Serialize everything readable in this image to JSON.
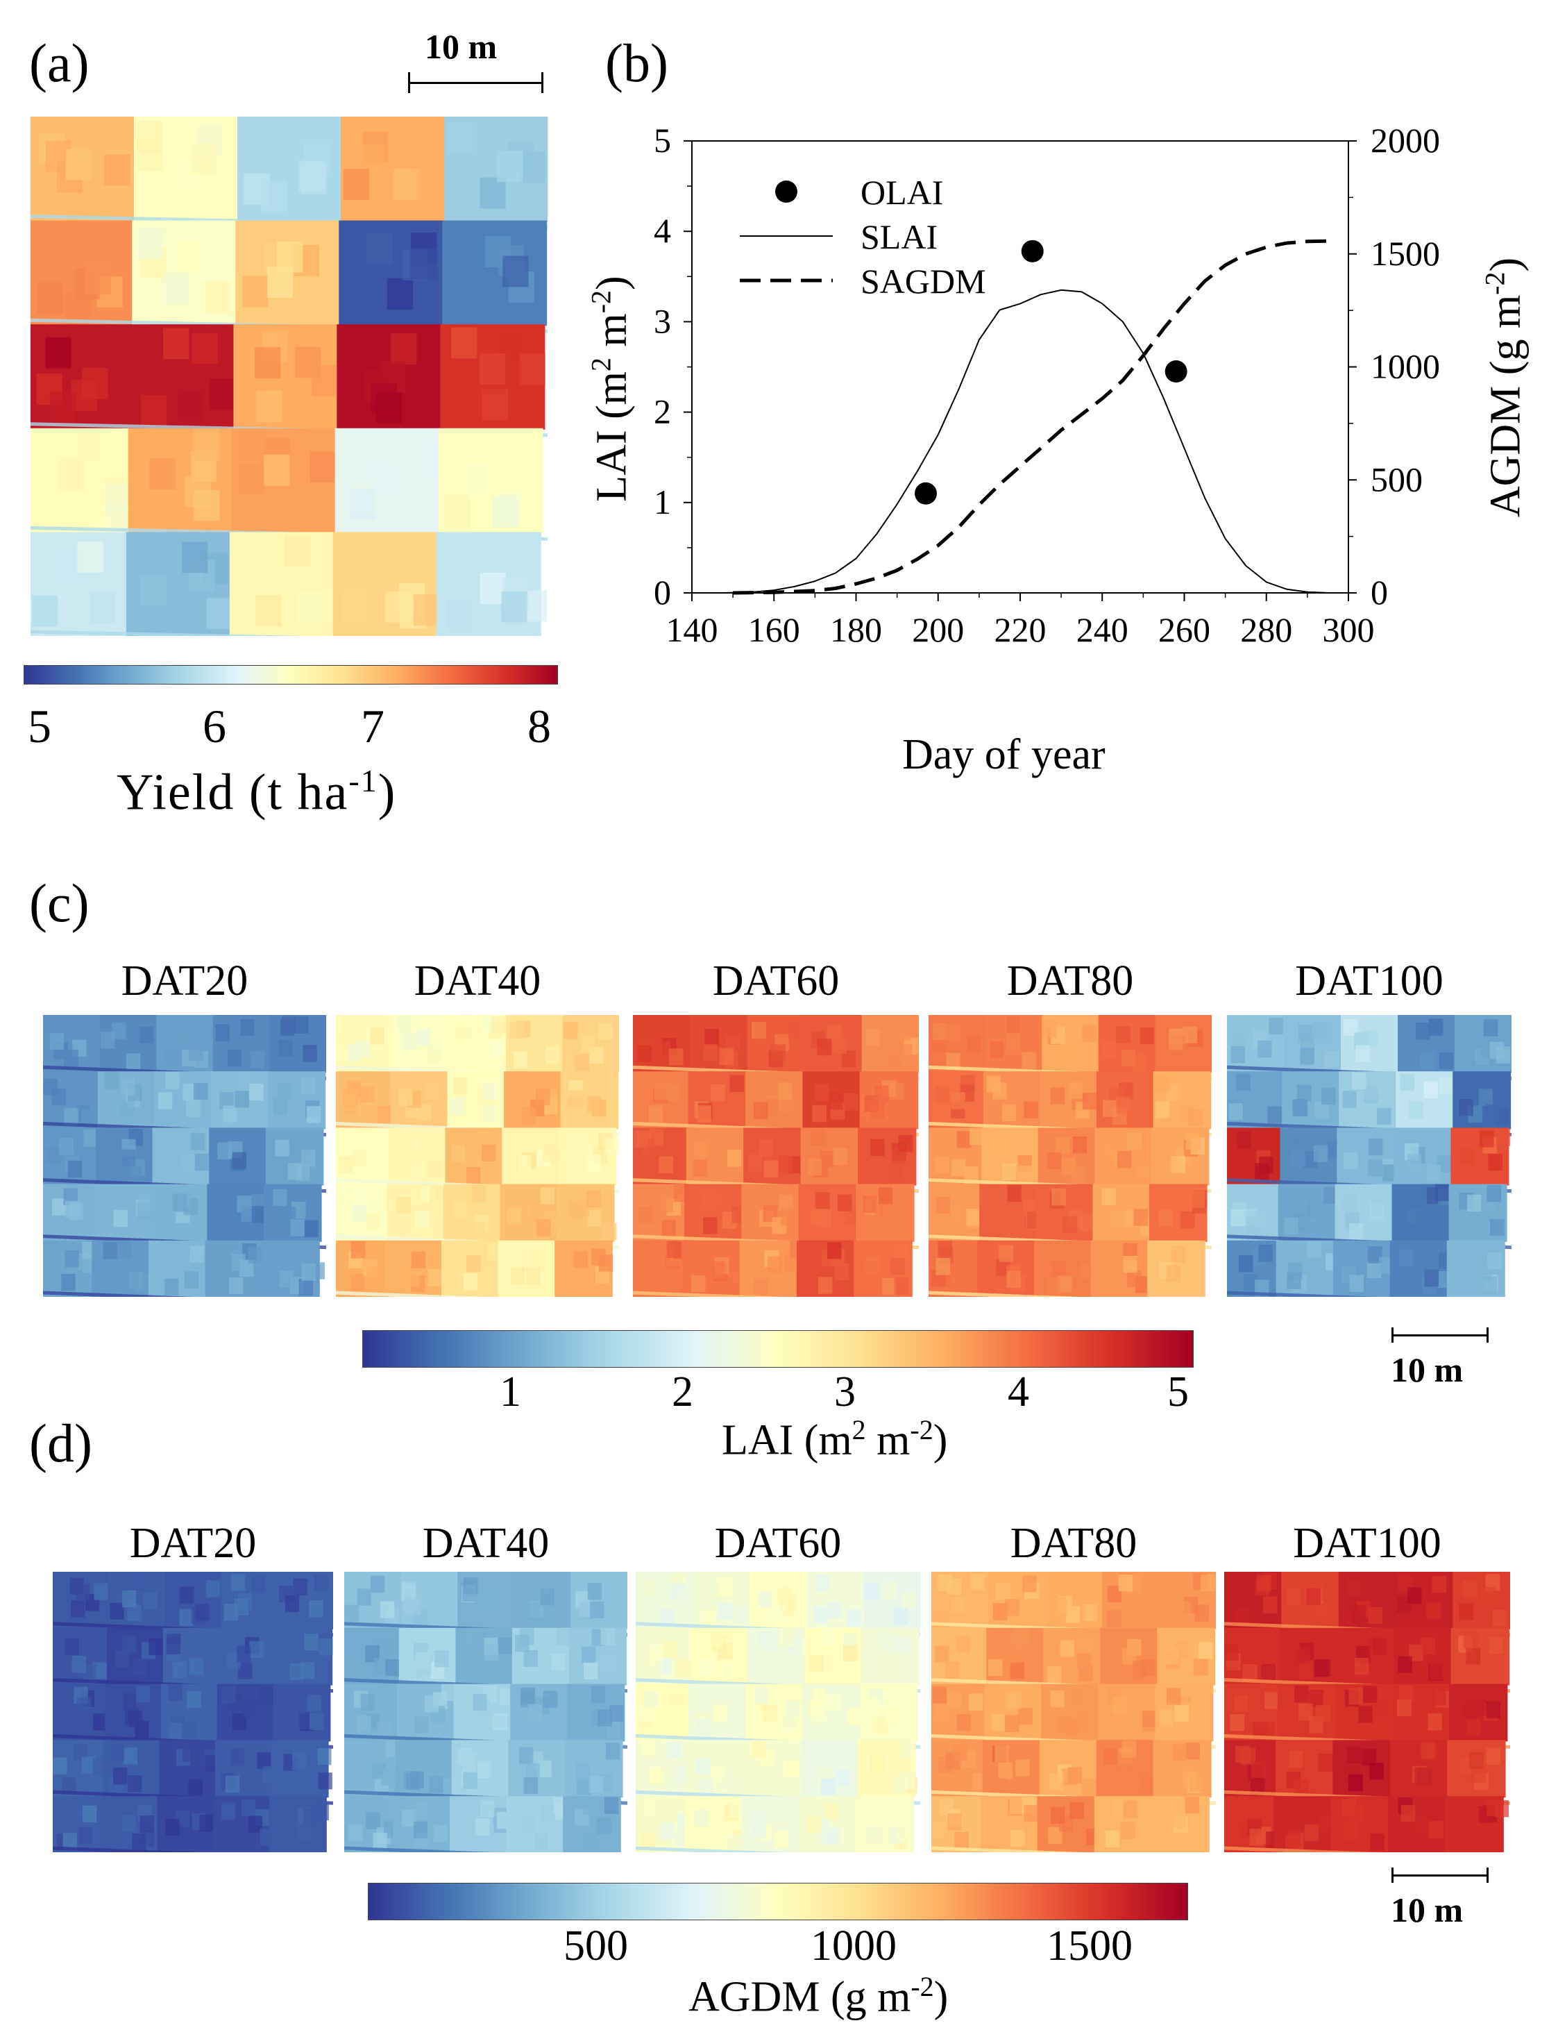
{
  "panel_a": {
    "letter": "(a)",
    "scale_label": "10 m",
    "colorbar": {
      "ticks": [
        "5",
        "6",
        "7",
        "8"
      ],
      "title": "Yield (t ha",
      "title_sup": "-1",
      "title_end": ")"
    }
  },
  "panel_c": {
    "letter": "(c)",
    "titles": [
      "DAT20",
      "DAT40",
      "DAT60",
      "DAT80",
      "DAT100"
    ],
    "colorbar": {
      "ticks": [
        "1",
        "2",
        "3",
        "4",
        "5"
      ],
      "title": "LAI (m",
      "sup1": "2",
      "mid": " m",
      "sup2": "-2",
      "end": ")"
    },
    "scale_label": "10 m"
  },
  "panel_d": {
    "letter": "(d)",
    "titles": [
      "DAT20",
      "DAT40",
      "DAT60",
      "DAT80",
      "DAT100"
    ],
    "colorbar": {
      "ticks": [
        "500",
        "1000",
        "1500"
      ],
      "title": "AGDM (g m",
      "sup": "-2",
      "end": ")"
    },
    "scale_label": "10 m"
  },
  "chart_data": [
    {
      "panel": "(b)",
      "type": "line",
      "xlabel": "Day of  year",
      "ylabel_left": {
        "text": "LAI (m",
        "sup1": "2",
        "mid": " m",
        "sup2": "-2",
        "end": ")"
      },
      "ylabel_right": {
        "text": "AGDM (g m",
        "sup": "-2",
        "end": ")"
      },
      "xlim": [
        140,
        300
      ],
      "ylim_left": [
        0,
        5
      ],
      "ylim_right": [
        0,
        2000
      ],
      "xticks": [
        "140",
        "160",
        "180",
        "200",
        "220",
        "240",
        "260",
        "280",
        "300"
      ],
      "yticks_left": [
        "0",
        "1",
        "2",
        "3",
        "4",
        "5"
      ],
      "yticks_right": [
        "0",
        "500",
        "1000",
        "1500",
        "2000"
      ],
      "legend": [
        "OLAI",
        "SLAI",
        "SAGDM"
      ],
      "series": [
        {
          "name": "OLAI",
          "style": "points",
          "x": [
            197,
            223,
            258
          ],
          "y": [
            1.1,
            3.78,
            2.45
          ]
        },
        {
          "name": "SLAI",
          "style": "solid",
          "axis": "left",
          "x": [
            148,
            155,
            160,
            165,
            170,
            175,
            180,
            185,
            190,
            195,
            200,
            205,
            210,
            215,
            220,
            225,
            230,
            235,
            240,
            245,
            250,
            255,
            260,
            265,
            270,
            275,
            280,
            285,
            290,
            295
          ],
          "y": [
            0,
            0.01,
            0.03,
            0.07,
            0.13,
            0.22,
            0.38,
            0.65,
            0.98,
            1.35,
            1.75,
            2.25,
            2.8,
            3.13,
            3.2,
            3.3,
            3.35,
            3.33,
            3.2,
            3.0,
            2.65,
            2.15,
            1.6,
            1.05,
            0.6,
            0.3,
            0.12,
            0.04,
            0.01,
            0
          ]
        },
        {
          "name": "SAGDM",
          "style": "dashed",
          "axis": "right",
          "x": [
            150,
            160,
            170,
            175,
            180,
            185,
            190,
            195,
            200,
            205,
            210,
            215,
            220,
            225,
            230,
            235,
            240,
            245,
            250,
            255,
            260,
            265,
            270,
            275,
            280,
            285,
            290,
            295
          ],
          "y": [
            0,
            2,
            10,
            20,
            40,
            65,
            100,
            150,
            210,
            290,
            390,
            480,
            560,
            640,
            720,
            790,
            860,
            940,
            1050,
            1170,
            1280,
            1380,
            1450,
            1500,
            1530,
            1548,
            1555,
            1557
          ]
        }
      ]
    }
  ]
}
